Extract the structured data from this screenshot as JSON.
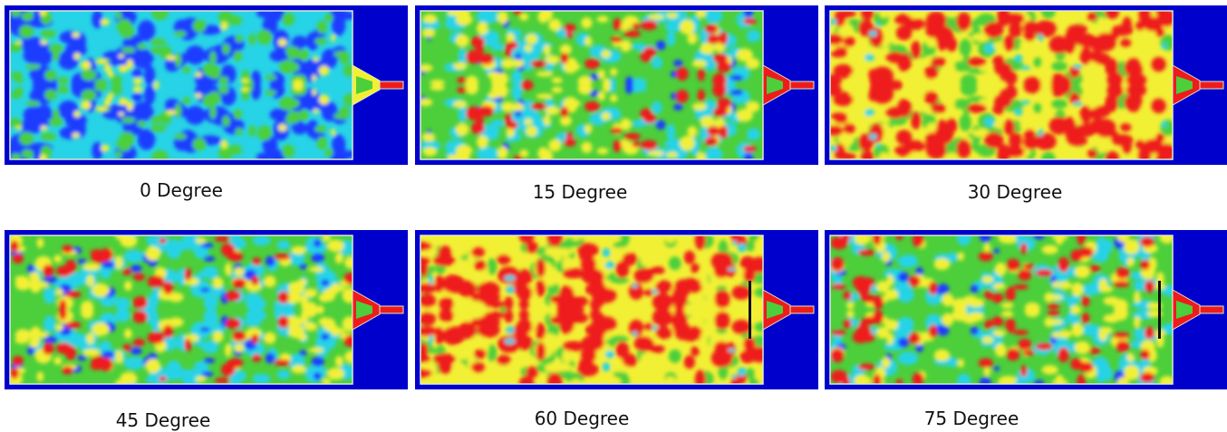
{
  "panels": [
    {
      "caption": "0 Degree",
      "intensity": 0.15,
      "baffle": false,
      "seed": 11
    },
    {
      "caption": "15 Degree",
      "intensity": 0.45,
      "baffle": false,
      "seed": 23
    },
    {
      "caption": "30 Degree",
      "intensity": 0.85,
      "baffle": false,
      "seed": 37
    },
    {
      "caption": "45 Degree",
      "intensity": 0.4,
      "baffle": false,
      "seed": 41
    },
    {
      "caption": "60 Degree",
      "intensity": 0.8,
      "baffle": true,
      "seed": 53
    },
    {
      "caption": "75 Degree",
      "intensity": 0.55,
      "baffle": true,
      "seed": 67
    }
  ],
  "colors": {
    "background": "#0000cc",
    "low": "#1e3cff",
    "cyan": "#27d3e6",
    "green": "#4ccf3a",
    "yellow": "#f2f034",
    "red": "#ee1b1b",
    "outlet": "#ee1b1b"
  }
}
